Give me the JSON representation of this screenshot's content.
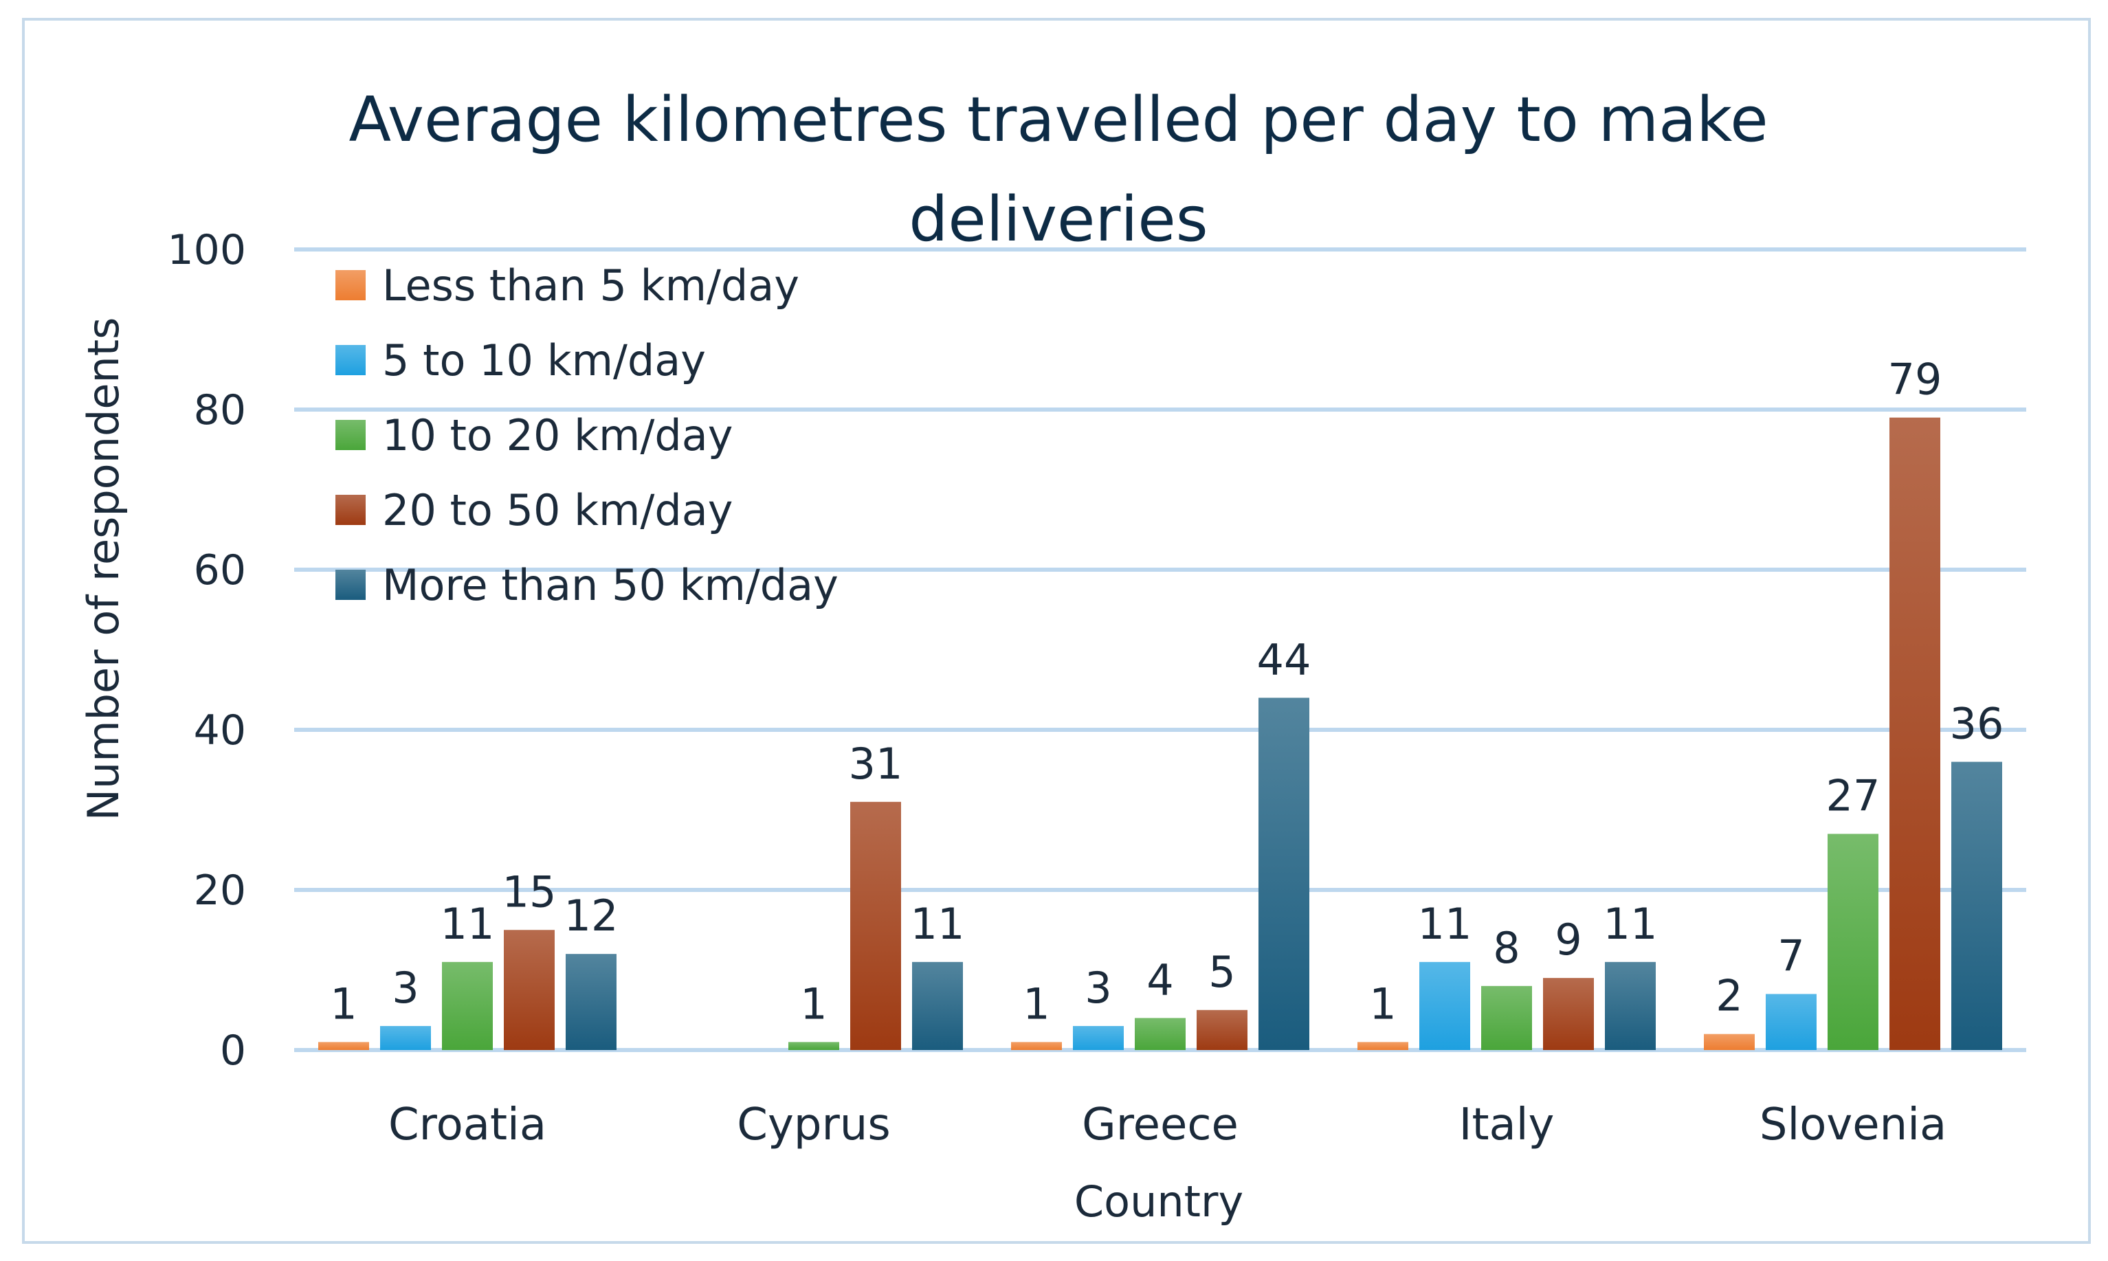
{
  "chart_data": {
    "type": "bar",
    "title": "Average kilometres travelled per day to make deliveries",
    "title_lines": [
      "Average kilometres travelled per day to make",
      "deliveries"
    ],
    "xlabel": "Country",
    "ylabel": "Number of respondents",
    "ylim": [
      0,
      100
    ],
    "yticks": [
      0,
      20,
      40,
      60,
      80,
      100
    ],
    "grid": true,
    "legend_position": "top-left",
    "categories": [
      "Croatia",
      "Cyprus",
      "Greece",
      "Italy",
      "Slovenia"
    ],
    "series": [
      {
        "name": "Less than 5 km/day",
        "values": [
          1,
          null,
          1,
          1,
          2
        ],
        "color": "#ed7d31"
      },
      {
        "name": "5 to 10 km/day",
        "values": [
          3,
          null,
          3,
          11,
          7
        ],
        "color": "#1ea0e0"
      },
      {
        "name": "10 to 20 km/day",
        "values": [
          11,
          1,
          4,
          8,
          27
        ],
        "color": "#4aa63a"
      },
      {
        "name": "20 to 50 km/day",
        "values": [
          15,
          31,
          5,
          9,
          79
        ],
        "color": "#9e3a12"
      },
      {
        "name": "More than 50 km/day",
        "values": [
          12,
          11,
          44,
          11,
          36
        ],
        "color": "#1a5c7e"
      }
    ]
  }
}
